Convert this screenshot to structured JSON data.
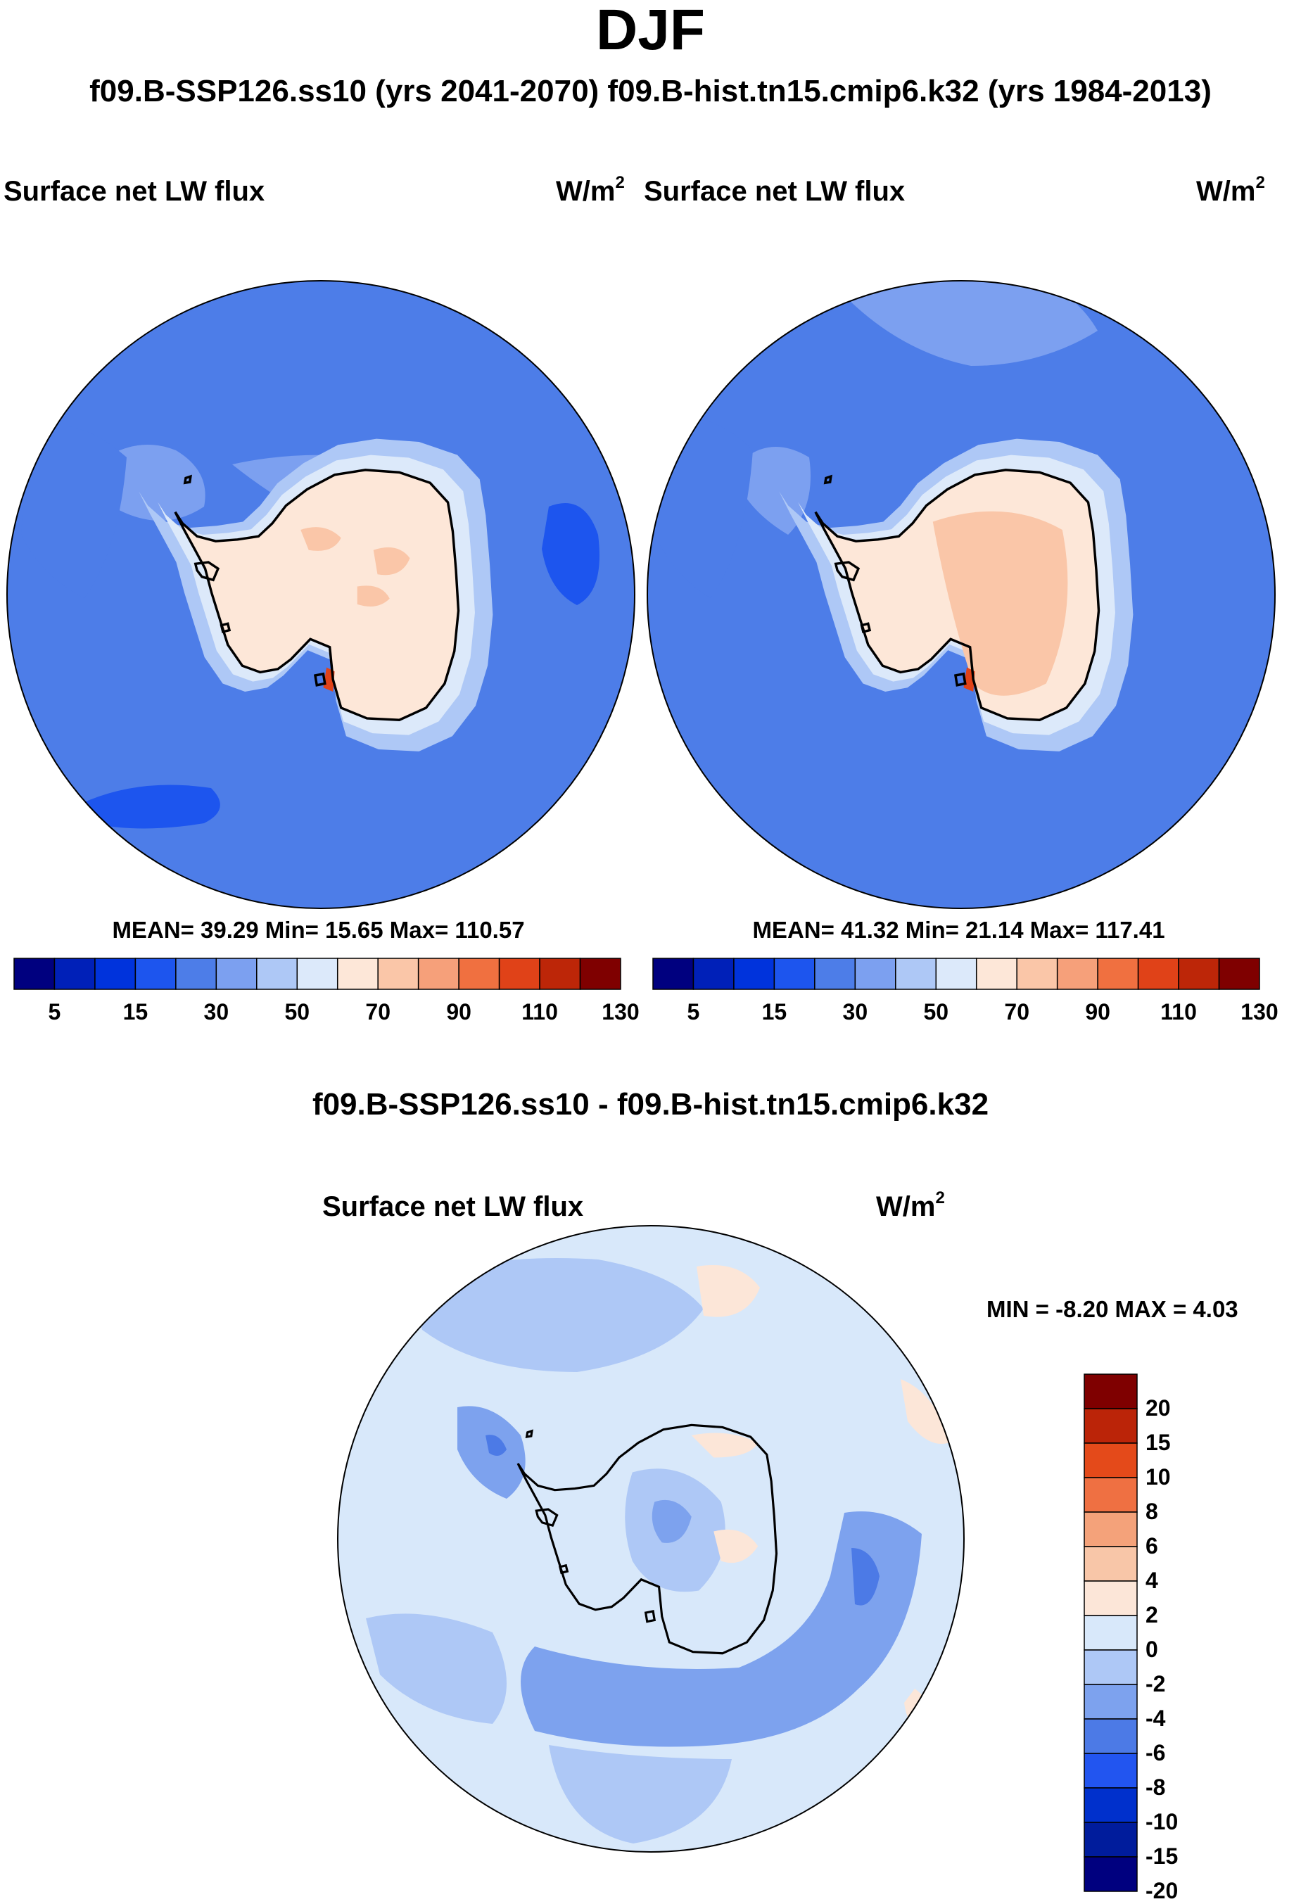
{
  "title": "DJF",
  "subtitle": "f09.B-SSP126.ss10 (yrs 2041-2070)  f09.B-hist.tn15.cmip6.k32 (yrs 1984-2013)",
  "panels": [
    {
      "variable": "Surface net LW flux",
      "units": "W/m",
      "units_sup": "2",
      "stats": "MEAN=  39.29  Min=  15.65  Max= 110.57"
    },
    {
      "variable": "Surface net LW flux",
      "units": "W/m",
      "units_sup": "2",
      "stats": "MEAN=  41.32  Min=  21.14  Max= 117.41"
    }
  ],
  "diff_panel": {
    "title": "f09.B-SSP126.ss10 - f09.B-hist.tn15.cmip6.k32",
    "variable": "Surface net LW flux",
    "units": "W/m",
    "units_sup": "2",
    "stats": "MIN =  -8.20 MAX =   4.03"
  },
  "colors": {
    "abs_scale": [
      "#00007f",
      "#0020b8",
      "#0033dc",
      "#1d55ee",
      "#4d7de8",
      "#7ca0f0",
      "#aec8f6",
      "#dce9fa",
      "#fde7d8",
      "#fac6a8",
      "#f6a07a",
      "#f07040",
      "#e04218",
      "#bd2608",
      "#7f0000"
    ],
    "diff_scale": [
      "#00007f",
      "#001c9c",
      "#0030cc",
      "#2255f0",
      "#4c7ae6",
      "#7da2ee",
      "#aec8f6",
      "#d8e8fa",
      "#fce6d8",
      "#f8c6a8",
      "#f4a27a",
      "#ef7042",
      "#e44a1a",
      "#bb2408",
      "#7f0000"
    ],
    "coast": "#000000"
  },
  "abs_colorbar": {
    "labels": [
      "5",
      "15",
      "30",
      "50",
      "70",
      "90",
      "110",
      "130"
    ]
  },
  "diff_colorbar": {
    "labels": [
      "20",
      "15",
      "10",
      "8",
      "6",
      "4",
      "2",
      "0",
      "-2",
      "-4",
      "-6",
      "-8",
      "-10",
      "-15",
      "-20"
    ]
  },
  "chart_data": {
    "type": "heatmap",
    "projection": "south polar stereographic",
    "season": "DJF",
    "maps": [
      {
        "name": "f09.B-SSP126.ss10 (yrs 2041-2070)",
        "variable": "Surface net LW flux",
        "units": "W/m2",
        "mean": 39.29,
        "min": 15.65,
        "max": 110.57
      },
      {
        "name": "f09.B-hist.tn15.cmip6.k32 (yrs 1984-2013)",
        "variable": "Surface net LW flux",
        "units": "W/m2",
        "mean": 41.32,
        "min": 21.14,
        "max": 117.41
      },
      {
        "name": "f09.B-SSP126.ss10 - f09.B-hist.tn15.cmip6.k32",
        "variable": "Surface net LW flux",
        "units": "W/m2",
        "min": -8.2,
        "max": 4.03
      }
    ],
    "abs_contour_levels": [
      5,
      10,
      15,
      20,
      30,
      40,
      50,
      60,
      70,
      80,
      90,
      100,
      110,
      120,
      130
    ],
    "diff_contour_levels": [
      -20,
      -15,
      -10,
      -8,
      -6,
      -4,
      -2,
      0,
      2,
      4,
      6,
      8,
      10,
      15,
      20
    ]
  }
}
